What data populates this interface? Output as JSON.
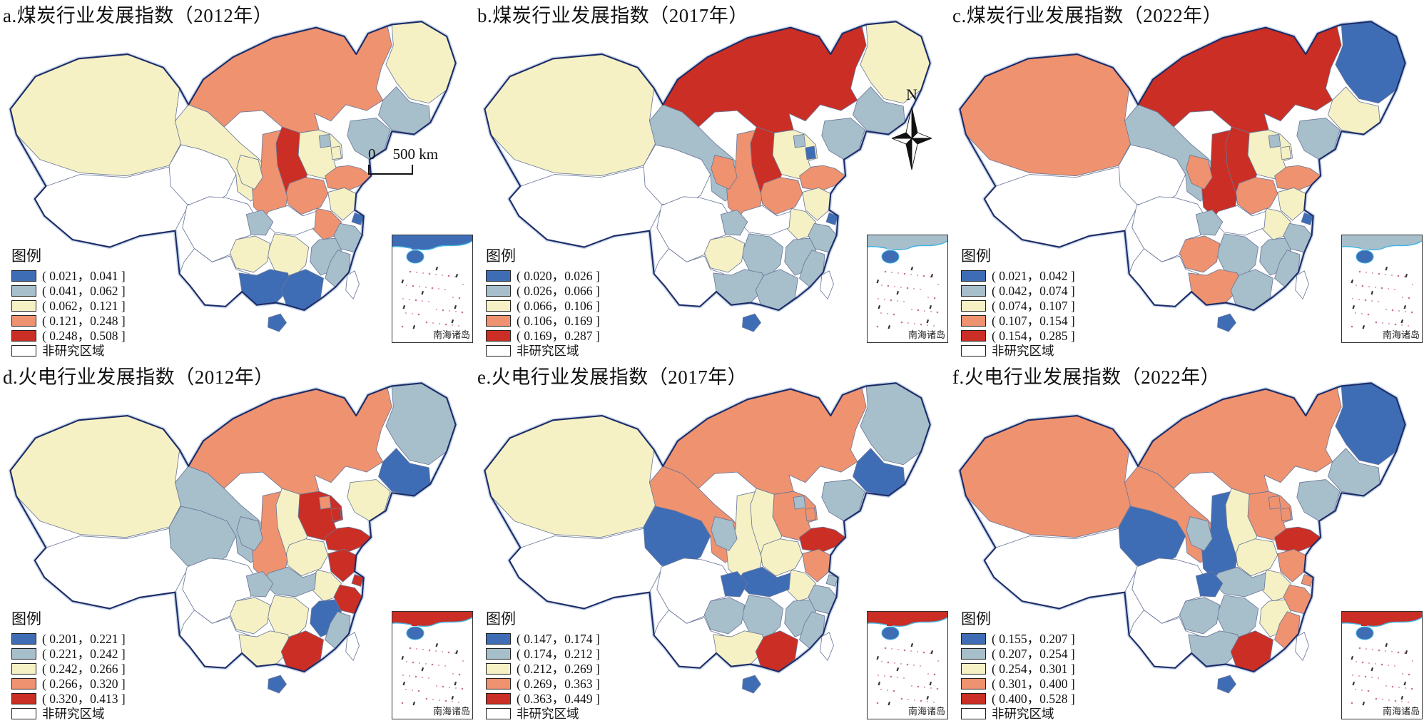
{
  "figure": {
    "north_label": "N",
    "scale_bar": {
      "start": "0",
      "end": "500 km"
    },
    "colors": {
      "class_fills": [
        "#ffffff",
        "#3e6db5",
        "#a7becb",
        "#f5f1c4",
        "#ee9270",
        "#cb2e24"
      ],
      "province_border": "#6a7899",
      "country_border": "#1d2b66",
      "country_halo": "#c9d9ec",
      "coast": "#3fb5e6",
      "island_dots": "#cc6fa1",
      "inset_border": "#333333"
    },
    "panels": [
      {
        "id": "a",
        "title": "a.煤炭行业发展指数（2012年）",
        "legend_heading": "图例",
        "bins": [
          "( 0.021，0.041 ]",
          "( 0.041，0.062 ]",
          "( 0.062，0.121 ]",
          "( 0.121，0.248 ]",
          "( 0.248，0.508 ]"
        ],
        "non_study_label": "非研究区域",
        "inset_label": "南海诸岛",
        "show_scale_bar": true,
        "show_north_arrow": false,
        "provinces": {
          "XJ": 3,
          "XZ": 0,
          "QH": 0,
          "GS": 3,
          "NX": 3,
          "NM": 4,
          "HL": 3,
          "JL": 2,
          "LN": 2,
          "BJ": 2,
          "TJ": 3,
          "HE": 3,
          "SX": 5,
          "SN": 4,
          "SD": 4,
          "HA": 4,
          "JS": 3,
          "SH": 1,
          "AH": 4,
          "HB": 0,
          "SC": 0,
          "CQ": 2,
          "ZJ": 2,
          "JX": 2,
          "HN": 3,
          "FJ": 2,
          "GZ": 3,
          "YN": 0,
          "GX": 1,
          "GD": 1,
          "HI": 1,
          "TW": 0
        }
      },
      {
        "id": "b",
        "title": "b.煤炭行业发展指数（2017年）",
        "legend_heading": "图例",
        "bins": [
          "( 0.020，0.026 ]",
          "( 0.026，0.066 ]",
          "( 0.066，0.106 ]",
          "( 0.106，0.169 ]",
          "( 0.169，0.287 ]"
        ],
        "non_study_label": "非研究区域",
        "inset_label": "南海诸岛",
        "show_scale_bar": false,
        "show_north_arrow": true,
        "provinces": {
          "XJ": 3,
          "XZ": 0,
          "QH": 0,
          "GS": 2,
          "NX": 4,
          "NM": 5,
          "HL": 3,
          "JL": 2,
          "LN": 2,
          "BJ": 2,
          "TJ": 1,
          "HE": 3,
          "SX": 5,
          "SN": 4,
          "SD": 4,
          "HA": 4,
          "JS": 3,
          "SH": 1,
          "AH": 3,
          "HB": 0,
          "SC": 0,
          "CQ": 2,
          "ZJ": 2,
          "JX": 2,
          "HN": 2,
          "FJ": 2,
          "GZ": 3,
          "YN": 0,
          "GX": 2,
          "GD": 2,
          "HI": 1,
          "TW": 0
        }
      },
      {
        "id": "c",
        "title": "c.煤炭行业发展指数（2022年）",
        "legend_heading": "图例",
        "bins": [
          "( 0.021，0.042 ]",
          "( 0.042，0.074 ]",
          "( 0.074，0.107 ]",
          "( 0.107，0.154 ]",
          "( 0.154，0.285 ]"
        ],
        "non_study_label": "非研究区域",
        "inset_label": "南海诸岛",
        "show_scale_bar": false,
        "show_north_arrow": false,
        "provinces": {
          "XJ": 4,
          "XZ": 0,
          "QH": 0,
          "GS": 2,
          "NX": 4,
          "NM": 5,
          "HL": 1,
          "JL": 3,
          "LN": 2,
          "BJ": 2,
          "TJ": 3,
          "HE": 3,
          "SX": 5,
          "SN": 5,
          "SD": 4,
          "HA": 4,
          "JS": 3,
          "SH": 1,
          "AH": 3,
          "HB": 0,
          "SC": 0,
          "CQ": 2,
          "ZJ": 2,
          "JX": 2,
          "HN": 2,
          "FJ": 2,
          "GZ": 4,
          "YN": 0,
          "GX": 4,
          "GD": 2,
          "HI": 1,
          "TW": 0
        }
      },
      {
        "id": "d",
        "title": "d.火电行业发展指数（2012年）",
        "legend_heading": "图例",
        "bins": [
          "( 0.201，0.221 ]",
          "( 0.221，0.242 ]",
          "( 0.242，0.266 ]",
          "( 0.266，0.320 ]",
          "( 0.320，0.413 ]"
        ],
        "non_study_label": "非研究区域",
        "inset_label": "南海诸岛",
        "show_scale_bar": false,
        "show_north_arrow": false,
        "provinces": {
          "XJ": 3,
          "XZ": 0,
          "QH": 2,
          "GS": 2,
          "NX": 2,
          "NM": 4,
          "HL": 2,
          "JL": 1,
          "LN": 3,
          "BJ": 4,
          "TJ": 5,
          "HE": 5,
          "SX": 3,
          "SN": 4,
          "SD": 5,
          "HA": 3,
          "JS": 5,
          "SH": 5,
          "AH": 3,
          "HB": 2,
          "SC": 0,
          "CQ": 2,
          "ZJ": 5,
          "JX": 1,
          "HN": 3,
          "FJ": 2,
          "GZ": 3,
          "YN": 0,
          "GX": 3,
          "GD": 5,
          "HI": 1,
          "TW": 0
        }
      },
      {
        "id": "e",
        "title": "e.火电行业发展指数（2017年）",
        "legend_heading": "图例",
        "bins": [
          "( 0.147，0.174 ]",
          "( 0.174，0.212 ]",
          "( 0.212，0.269 ]",
          "( 0.269，0.363 ]",
          "( 0.363，0.449 ]"
        ],
        "non_study_label": "非研究区域",
        "inset_label": "南海诸岛",
        "show_scale_bar": false,
        "show_north_arrow": false,
        "provinces": {
          "XJ": 3,
          "XZ": 0,
          "QH": 1,
          "GS": 4,
          "NX": 2,
          "NM": 4,
          "HL": 2,
          "JL": 1,
          "LN": 2,
          "BJ": 2,
          "TJ": 4,
          "HE": 4,
          "SX": 3,
          "SN": 3,
          "SD": 5,
          "HA": 3,
          "JS": 4,
          "SH": 2,
          "AH": 3,
          "HB": 1,
          "SC": 0,
          "CQ": 1,
          "ZJ": 2,
          "JX": 2,
          "HN": 2,
          "FJ": 2,
          "GZ": 2,
          "YN": 0,
          "GX": 3,
          "GD": 5,
          "HI": 1,
          "TW": 0
        }
      },
      {
        "id": "f",
        "title": "f.火电行业发展指数（2022年）",
        "legend_heading": "图例",
        "bins": [
          "( 0.155，0.207 ]",
          "( 0.207，0.254 ]",
          "( 0.254，0.301 ]",
          "( 0.301，0.400 ]",
          "( 0.400，0.528 ]"
        ],
        "non_study_label": "非研究区域",
        "inset_label": "南海诸岛",
        "show_scale_bar": false,
        "show_north_arrow": false,
        "provinces": {
          "XJ": 4,
          "XZ": 0,
          "QH": 1,
          "GS": 4,
          "NX": 2,
          "NM": 4,
          "HL": 1,
          "JL": 2,
          "LN": 2,
          "BJ": 4,
          "TJ": 4,
          "HE": 4,
          "SX": 3,
          "SN": 1,
          "SD": 5,
          "HA": 3,
          "JS": 4,
          "SH": 4,
          "AH": 3,
          "HB": 2,
          "SC": 0,
          "CQ": 1,
          "ZJ": 4,
          "JX": 3,
          "HN": 2,
          "FJ": 4,
          "GZ": 2,
          "YN": 0,
          "GX": 2,
          "GD": 5,
          "HI": 1,
          "TW": 0
        }
      }
    ]
  }
}
